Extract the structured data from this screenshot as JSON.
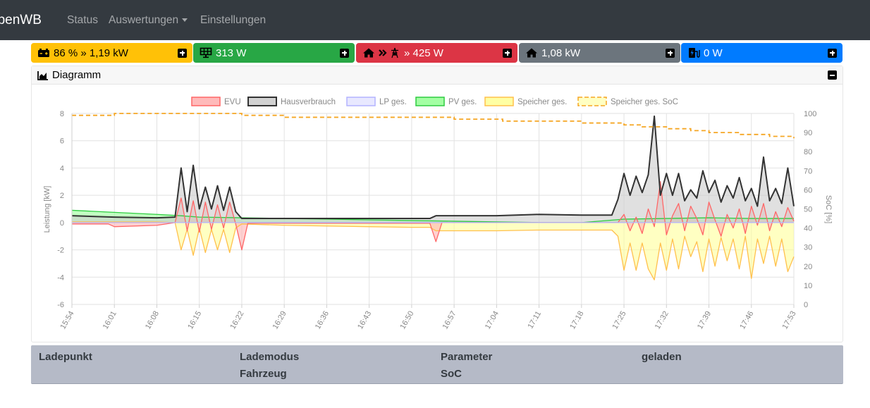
{
  "navbar": {
    "brand": "openWB",
    "links": [
      "Status",
      "Auswertungen",
      "Einstellungen"
    ]
  },
  "tiles": [
    {
      "text": "86 % » 1,19 kW",
      "icon": "battery-icon",
      "color": "#ffc107",
      "fg": "#000000"
    },
    {
      "text": "313 W",
      "icon": "solar-panel-icon",
      "color": "#28a745",
      "fg": "#ffffff"
    },
    {
      "text": "» 425 W",
      "icon": "home-grid-icon",
      "color": "#dc3545",
      "fg": "#ffffff"
    },
    {
      "text": "1,08 kW",
      "icon": "home-icon",
      "color": "#6c757d",
      "fg": "#ffffff"
    },
    {
      "text": "0 W",
      "icon": "charging-station-icon",
      "color": "#007bff",
      "fg": "#ffffff"
    }
  ],
  "diagram": {
    "title": "Diagramm"
  },
  "chart_data": {
    "type": "area",
    "ylabel": "Leistung [kW]",
    "y2label": "SoC [%]",
    "ylim": [
      -6,
      8
    ],
    "y2lim": [
      0,
      100
    ],
    "yticks": [
      "8",
      "6",
      "4",
      "2",
      "0",
      "-2",
      "-4",
      "-6"
    ],
    "y2ticks": [
      "100",
      "90",
      "80",
      "70",
      "60",
      "50",
      "40",
      "30",
      "20",
      "10",
      "0"
    ],
    "x_ticks": [
      "15:54",
      "16:01",
      "16:08",
      "16:15",
      "16:22",
      "16:29",
      "16:36",
      "16:43",
      "16:50",
      "16:57",
      "17:04",
      "17:11",
      "17:18",
      "17:25",
      "17:32",
      "17:39",
      "17:46",
      "17:53"
    ],
    "grid": true,
    "legend_position": "top",
    "series": [
      {
        "name": "EVU",
        "color": "#ff6666",
        "fill": "#ffb3b3",
        "points": [
          [
            "15:54",
            -0.1
          ],
          [
            "16:00",
            -0.1
          ],
          [
            "16:01",
            -0.3
          ],
          [
            "16:08",
            -0.2
          ],
          [
            "16:11",
            0.0
          ],
          [
            "16:12",
            1.8
          ],
          [
            "16:13",
            -0.6
          ],
          [
            "16:14",
            1.6
          ],
          [
            "16:15",
            -0.7
          ],
          [
            "16:16",
            1.5
          ],
          [
            "16:17",
            -0.5
          ],
          [
            "16:18",
            1.3
          ],
          [
            "16:19",
            -0.4
          ],
          [
            "16:20",
            1.5
          ],
          [
            "16:21",
            -0.1
          ],
          [
            "16:22",
            -2.0
          ],
          [
            "16:23",
            -0.05
          ],
          [
            "16:40",
            -0.05
          ],
          [
            "16:53",
            -0.05
          ],
          [
            "16:54",
            -1.4
          ],
          [
            "16:55",
            0.0
          ],
          [
            "17:24",
            0.0
          ],
          [
            "17:25",
            0.6
          ],
          [
            "17:26",
            -0.6
          ],
          [
            "17:27",
            0.4
          ],
          [
            "17:28",
            -0.8
          ],
          [
            "17:29",
            1.0
          ],
          [
            "17:30",
            -0.3
          ],
          [
            "17:31",
            3.0
          ],
          [
            "17:32",
            -0.9
          ],
          [
            "17:33",
            0.5
          ],
          [
            "17:34",
            1.4
          ],
          [
            "17:35",
            -0.6
          ],
          [
            "17:36",
            1.2
          ],
          [
            "17:37",
            0.3
          ],
          [
            "17:38",
            -0.9
          ],
          [
            "17:39",
            1.5
          ],
          [
            "17:40",
            0.2
          ],
          [
            "17:41",
            -1.0
          ],
          [
            "17:42",
            0.6
          ],
          [
            "17:43",
            -0.4
          ],
          [
            "17:44",
            1.0
          ],
          [
            "17:45",
            -0.8
          ],
          [
            "17:46",
            1.2
          ],
          [
            "17:47",
            -0.2
          ],
          [
            "17:48",
            1.4
          ],
          [
            "17:49",
            -0.6
          ],
          [
            "17:50",
            0.8
          ],
          [
            "17:51",
            -0.3
          ],
          [
            "17:52",
            1.1
          ],
          [
            "17:53",
            0.1
          ]
        ]
      },
      {
        "name": "Hausverbrauch",
        "color": "#333333",
        "fill": "#cccccc",
        "points": [
          [
            "15:54",
            0.5
          ],
          [
            "16:01",
            0.4
          ],
          [
            "16:08",
            0.35
          ],
          [
            "16:11",
            0.4
          ],
          [
            "16:12",
            4.0
          ],
          [
            "16:13",
            0.8
          ],
          [
            "16:14",
            4.2
          ],
          [
            "16:15",
            1.0
          ],
          [
            "16:16",
            2.6
          ],
          [
            "16:17",
            1.0
          ],
          [
            "16:18",
            2.7
          ],
          [
            "16:19",
            0.9
          ],
          [
            "16:20",
            2.6
          ],
          [
            "16:21",
            0.8
          ],
          [
            "16:22",
            0.3
          ],
          [
            "16:29",
            0.3
          ],
          [
            "16:43",
            0.3
          ],
          [
            "16:53",
            0.3
          ],
          [
            "16:54",
            0.5
          ],
          [
            "17:04",
            0.5
          ],
          [
            "17:11",
            0.6
          ],
          [
            "17:18",
            0.55
          ],
          [
            "17:23",
            0.55
          ],
          [
            "17:24",
            1.7
          ],
          [
            "17:25",
            3.6
          ],
          [
            "17:26",
            2.0
          ],
          [
            "17:27",
            3.4
          ],
          [
            "17:28",
            2.2
          ],
          [
            "17:29",
            3.5
          ],
          [
            "17:30",
            7.8
          ],
          [
            "17:31",
            2.0
          ],
          [
            "17:32",
            3.6
          ],
          [
            "17:33",
            2.0
          ],
          [
            "17:34",
            3.6
          ],
          [
            "17:35",
            1.6
          ],
          [
            "17:36",
            2.4
          ],
          [
            "17:37",
            1.8
          ],
          [
            "17:38",
            3.8
          ],
          [
            "17:39",
            2.2
          ],
          [
            "17:40",
            3.1
          ],
          [
            "17:41",
            1.5
          ],
          [
            "17:42",
            2.7
          ],
          [
            "17:43",
            1.8
          ],
          [
            "17:44",
            3.3
          ],
          [
            "17:45",
            1.6
          ],
          [
            "17:46",
            2.5
          ],
          [
            "17:47",
            1.2
          ],
          [
            "17:48",
            4.8
          ],
          [
            "17:49",
            1.6
          ],
          [
            "17:50",
            2.5
          ],
          [
            "17:51",
            1.4
          ],
          [
            "17:52",
            4.0
          ],
          [
            "17:53",
            1.2
          ]
        ]
      },
      {
        "name": "LP ges.",
        "color": "#b3b3ff",
        "fill": "#e6e6ff",
        "points": [
          [
            "15:54",
            0
          ],
          [
            "17:53",
            0
          ]
        ]
      },
      {
        "name": "PV ges.",
        "color": "#2ecc40",
        "fill": "#99ff99",
        "points": [
          [
            "15:54",
            0.9
          ],
          [
            "16:01",
            0.75
          ],
          [
            "16:08",
            0.6
          ],
          [
            "16:12",
            0.5
          ],
          [
            "16:15",
            0.4
          ],
          [
            "16:22",
            0.35
          ],
          [
            "16:29",
            0.3
          ],
          [
            "16:36",
            0.25
          ],
          [
            "16:43",
            0.2
          ],
          [
            "16:50",
            0.15
          ],
          [
            "16:57",
            0.1
          ],
          [
            "17:04",
            0.05
          ],
          [
            "17:11",
            0.0
          ],
          [
            "17:18",
            0.0
          ],
          [
            "17:25",
            0.25
          ],
          [
            "17:32",
            0.3
          ],
          [
            "17:39",
            0.35
          ],
          [
            "17:46",
            0.3
          ],
          [
            "17:53",
            0.3
          ]
        ]
      },
      {
        "name": "Speicher ges.",
        "color": "#ffc04d",
        "fill": "#ffff99",
        "points": [
          [
            "15:54",
            0.05
          ],
          [
            "16:08",
            0.05
          ],
          [
            "16:11",
            0.0
          ],
          [
            "16:12",
            -2.0
          ],
          [
            "16:13",
            -0.5
          ],
          [
            "16:14",
            -2.4
          ],
          [
            "16:15",
            -0.4
          ],
          [
            "16:16",
            -2.2
          ],
          [
            "16:17",
            -0.5
          ],
          [
            "16:18",
            -2.0
          ],
          [
            "16:19",
            -0.5
          ],
          [
            "16:20",
            -2.2
          ],
          [
            "16:21",
            -0.4
          ],
          [
            "16:22",
            -0.1
          ],
          [
            "16:29",
            -0.2
          ],
          [
            "16:36",
            -0.25
          ],
          [
            "16:43",
            -0.3
          ],
          [
            "16:50",
            -0.35
          ],
          [
            "16:53",
            -0.35
          ],
          [
            "16:54",
            -0.6
          ],
          [
            "17:04",
            -0.6
          ],
          [
            "17:11",
            -0.55
          ],
          [
            "17:18",
            -0.55
          ],
          [
            "17:23",
            -0.55
          ],
          [
            "17:24",
            -1.0
          ],
          [
            "17:25",
            -3.5
          ],
          [
            "17:26",
            -1.5
          ],
          [
            "17:27",
            -3.5
          ],
          [
            "17:28",
            -1.5
          ],
          [
            "17:29",
            -3.4
          ],
          [
            "17:30",
            -4.2
          ],
          [
            "17:31",
            -1.5
          ],
          [
            "17:32",
            -3.5
          ],
          [
            "17:33",
            -1.2
          ],
          [
            "17:34",
            -3.4
          ],
          [
            "17:35",
            -1.0
          ],
          [
            "17:36",
            -2.5
          ],
          [
            "17:37",
            -1.4
          ],
          [
            "17:38",
            -3.6
          ],
          [
            "17:39",
            -1.2
          ],
          [
            "17:40",
            -3.2
          ],
          [
            "17:41",
            -1.1
          ],
          [
            "17:42",
            -2.8
          ],
          [
            "17:43",
            -1.2
          ],
          [
            "17:44",
            -3.4
          ],
          [
            "17:45",
            -1.0
          ],
          [
            "17:46",
            -4.1
          ],
          [
            "17:47",
            -1.2
          ],
          [
            "17:48",
            -3.0
          ],
          [
            "17:49",
            -1.0
          ],
          [
            "17:50",
            -3.2
          ],
          [
            "17:51",
            -1.2
          ],
          [
            "17:52",
            -3.6
          ],
          [
            "17:53",
            -2.5
          ]
        ]
      },
      {
        "name": "Speicher ges. SoC",
        "color": "#f5a623",
        "dashed": true,
        "axis": "right",
        "points": [
          [
            "15:54",
            99
          ],
          [
            "16:01",
            100
          ],
          [
            "16:22",
            99
          ],
          [
            "16:29",
            98
          ],
          [
            "16:57",
            97
          ],
          [
            "17:04",
            97
          ],
          [
            "17:05",
            96
          ],
          [
            "17:18",
            95
          ],
          [
            "17:25",
            94
          ],
          [
            "17:28",
            93
          ],
          [
            "17:32",
            92
          ],
          [
            "17:36",
            91
          ],
          [
            "17:39",
            90
          ],
          [
            "17:44",
            89
          ],
          [
            "17:49",
            88
          ],
          [
            "17:53",
            87
          ]
        ]
      }
    ]
  },
  "table": {
    "headers": [
      {
        "line1": "Ladepunkt",
        "line2": ""
      },
      {
        "line1": "Lademodus",
        "line2": "Fahrzeug"
      },
      {
        "line1": "Parameter",
        "line2": "SoC"
      },
      {
        "line1": "geladen",
        "line2": ""
      }
    ]
  }
}
